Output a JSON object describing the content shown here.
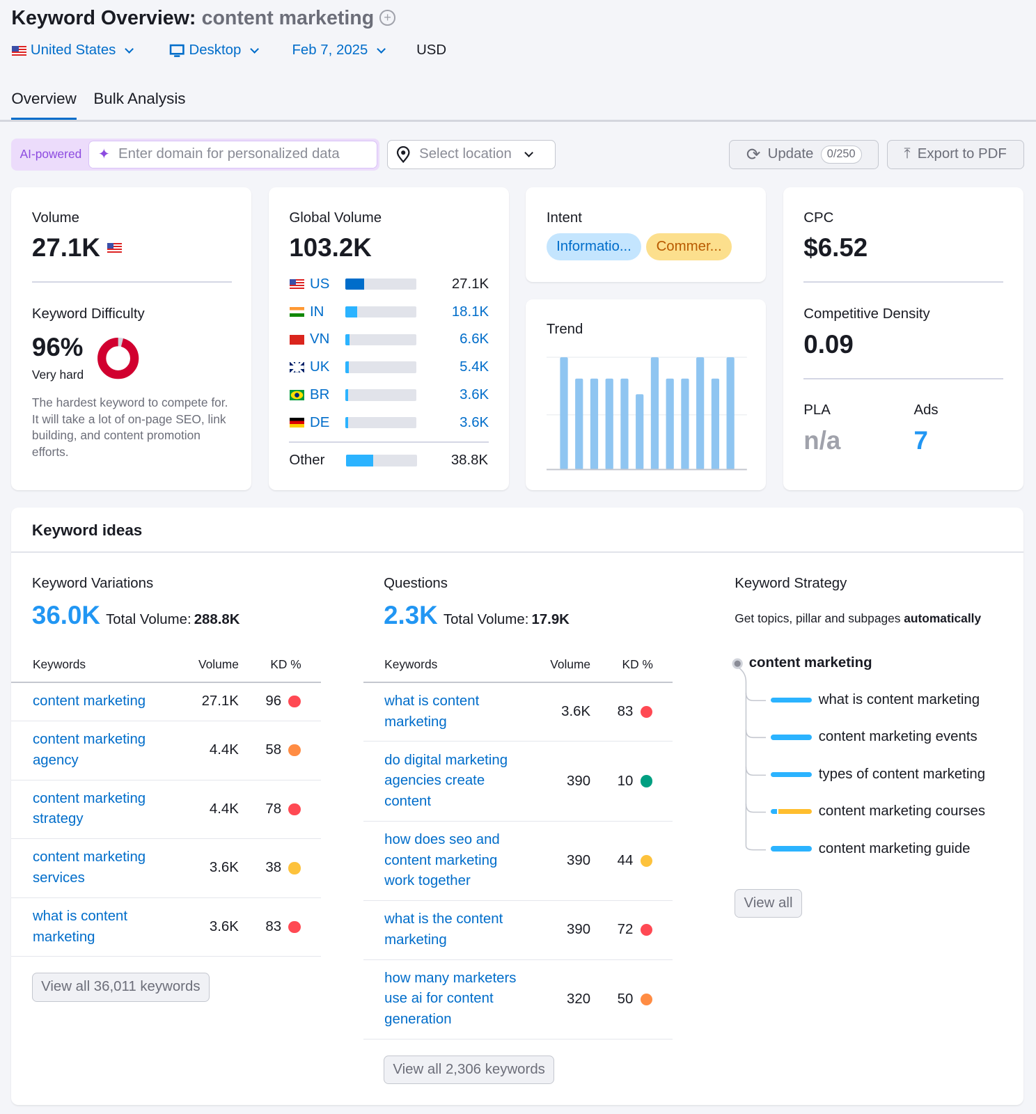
{
  "header": {
    "title": "Keyword Overview:",
    "keyword": "content marketing",
    "add_icon": "plus-circle-icon"
  },
  "filters": {
    "country": "United States",
    "device": "Desktop",
    "date": "Feb 7, 2025",
    "currency": "USD"
  },
  "tabs": [
    {
      "label": "Overview",
      "active": true
    },
    {
      "label": "Bulk Analysis",
      "active": false
    }
  ],
  "toolbar": {
    "ai_badge": "AI-powered",
    "domain_placeholder": "Enter domain for personalized data",
    "location_placeholder": "Select location",
    "update_label": "Update",
    "update_count": "0/250",
    "export_label": "Export to PDF"
  },
  "volume": {
    "label": "Volume",
    "value": "27.1K"
  },
  "kd": {
    "label": "Keyword Difficulty",
    "value": "96%",
    "percent": 96,
    "level": "Very hard",
    "description": "The hardest keyword to compete for. It will take a lot of on-page SEO, link building, and content promotion efforts.",
    "color": "#d1002f"
  },
  "global": {
    "label": "Global Volume",
    "value": "103.2K",
    "rows": [
      {
        "code": "US",
        "value": "27.1K",
        "share": 26
      },
      {
        "code": "IN",
        "value": "18.1K",
        "share": 17
      },
      {
        "code": "VN",
        "value": "6.6K",
        "share": 6
      },
      {
        "code": "UK",
        "value": "5.4K",
        "share": 5
      },
      {
        "code": "BR",
        "value": "3.6K",
        "share": 3.5
      },
      {
        "code": "DE",
        "value": "3.6K",
        "share": 3.5
      }
    ],
    "other": {
      "label": "Other",
      "value": "38.8K",
      "share": 38
    }
  },
  "intent": {
    "label": "Intent",
    "badges": [
      "Informatio...",
      "Commer..."
    ]
  },
  "trend": {
    "label": "Trend",
    "values": [
      1,
      0.81,
      0.81,
      0.81,
      0.81,
      0.67,
      1,
      0.81,
      0.81,
      1,
      0.81,
      1
    ]
  },
  "cpc": {
    "label": "CPC",
    "value": "$6.52",
    "cd_label": "Competitive Density",
    "cd_value": "0.09",
    "pla_label": "PLA",
    "pla_value": "n/a",
    "ads_label": "Ads",
    "ads_value": "7"
  },
  "ideas": {
    "title": "Keyword ideas",
    "variations": {
      "label": "Keyword Variations",
      "count": "36.0K",
      "total_label": "Total Volume:",
      "total": "288.8K",
      "headers": [
        "Keywords",
        "Volume",
        "KD %"
      ],
      "rows": [
        {
          "kw": "content marketing",
          "vol": "27.1K",
          "kd": "96",
          "color": "#ff4953"
        },
        {
          "kw": "content marketing agency",
          "vol": "4.4K",
          "kd": "58",
          "color": "#ff8c43"
        },
        {
          "kw": "content marketing strategy",
          "vol": "4.4K",
          "kd": "78",
          "color": "#ff4953"
        },
        {
          "kw": "content marketing services",
          "vol": "3.6K",
          "kd": "38",
          "color": "#fdc23c"
        },
        {
          "kw": "what is content marketing",
          "vol": "3.6K",
          "kd": "83",
          "color": "#ff4953"
        }
      ],
      "view_all": "View all 36,011 keywords"
    },
    "questions": {
      "label": "Questions",
      "count": "2.3K",
      "total_label": "Total Volume:",
      "total": "17.9K",
      "headers": [
        "Keywords",
        "Volume",
        "KD %"
      ],
      "rows": [
        {
          "kw": "what is content marketing",
          "vol": "3.6K",
          "kd": "83",
          "color": "#ff4953"
        },
        {
          "kw": "do digital marketing agencies create content",
          "vol": "390",
          "kd": "10",
          "color": "#009f81"
        },
        {
          "kw": "how does seo and content marketing work together",
          "vol": "390",
          "kd": "44",
          "color": "#fdc23c"
        },
        {
          "kw": "what is the content marketing",
          "vol": "390",
          "kd": "72",
          "color": "#ff4953"
        },
        {
          "kw": "how many marketers use ai for content generation",
          "vol": "320",
          "kd": "50",
          "color": "#ff8c43"
        }
      ],
      "view_all": "View all 2,306 keywords"
    },
    "strategy": {
      "label": "Keyword Strategy",
      "desc": "Get topics, pillar and subpages",
      "desc_bold": "automatically",
      "root": "content marketing",
      "items": [
        {
          "kw": "what is content marketing",
          "blue": 1
        },
        {
          "kw": "content marketing events",
          "blue": 1
        },
        {
          "kw": "types of content marketing",
          "blue": 1
        },
        {
          "kw": "content marketing courses",
          "blue": 0.15
        },
        {
          "kw": "content marketing guide",
          "blue": 1
        }
      ],
      "view_all": "View all"
    }
  }
}
